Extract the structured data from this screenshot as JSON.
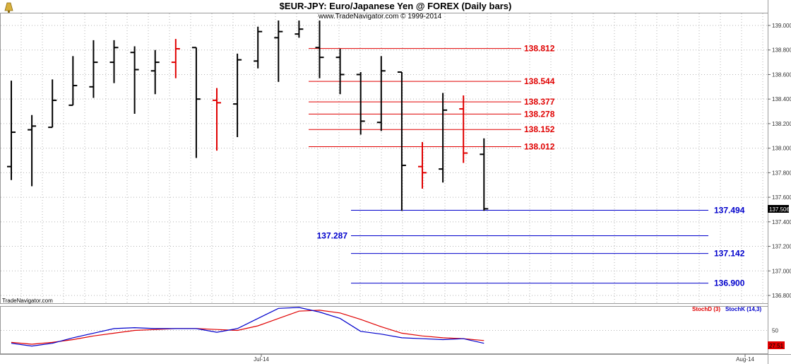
{
  "header": {
    "title": "$EUR-JPY:  Euro/Japanese Yen @ FOREX  (Daily bars)",
    "subtitle": "www.TradeNavigator.com © 1999-2014",
    "watermark": "TradeNavigator.com",
    "logo_icon": "bell-logo-icon"
  },
  "colors": {
    "up_bar": "#000000",
    "down_bar": "#e00000",
    "resistance": "#e00000",
    "support": "#0000cc",
    "stochD": "#e00000",
    "stochK": "#0000cc",
    "price_box": "#000000",
    "stoch_box": "#e00000"
  },
  "chart_data": [
    {
      "type": "bar",
      "subtype": "ohlc",
      "ylim": [
        136.7,
        139.05
      ],
      "y_ticks": [
        "139.000",
        "138.800",
        "138.600",
        "138.400",
        "138.200",
        "138.000",
        "137.800",
        "137.600",
        "137.400",
        "137.200",
        "137.000",
        "136.800"
      ],
      "x_ticks": [
        "Jul-14",
        "Aug-14"
      ],
      "last_price_label": "137.506",
      "bars": [
        {
          "o": 137.85,
          "h": 138.55,
          "l": 137.74,
          "c": 138.13,
          "color": "up"
        },
        {
          "o": 138.15,
          "h": 138.27,
          "l": 137.69,
          "c": 138.18,
          "color": "up"
        },
        {
          "o": 138.17,
          "h": 138.56,
          "l": 138.17,
          "c": 138.39,
          "color": "up"
        },
        {
          "o": 138.35,
          "h": 138.75,
          "l": 138.35,
          "c": 138.51,
          "color": "up"
        },
        {
          "o": 138.5,
          "h": 138.88,
          "l": 138.41,
          "c": 138.7,
          "color": "up"
        },
        {
          "o": 138.7,
          "h": 138.88,
          "l": 138.53,
          "c": 138.82,
          "color": "up"
        },
        {
          "o": 138.78,
          "h": 138.83,
          "l": 138.28,
          "c": 138.64,
          "color": "up"
        },
        {
          "o": 138.63,
          "h": 138.8,
          "l": 138.44,
          "c": 138.7,
          "color": "up"
        },
        {
          "o": 138.7,
          "h": 138.89,
          "l": 138.57,
          "c": 138.81,
          "color": "down"
        },
        {
          "o": 138.82,
          "h": 138.82,
          "l": 137.92,
          "c": 138.4,
          "color": "up"
        },
        {
          "o": 138.39,
          "h": 138.49,
          "l": 137.98,
          "c": 138.37,
          "color": "down"
        },
        {
          "o": 138.36,
          "h": 138.77,
          "l": 138.09,
          "c": 138.72,
          "color": "up"
        },
        {
          "o": 138.71,
          "h": 138.99,
          "l": 138.65,
          "c": 138.95,
          "color": "up"
        },
        {
          "o": 138.9,
          "h": 139.04,
          "l": 138.54,
          "c": 138.95,
          "color": "up"
        },
        {
          "o": 138.93,
          "h": 139.04,
          "l": 138.9,
          "c": 138.97,
          "color": "up"
        },
        {
          "o": 138.82,
          "h": 139.04,
          "l": 138.57,
          "c": 138.74,
          "color": "up"
        },
        {
          "o": 138.74,
          "h": 138.81,
          "l": 138.44,
          "c": 138.6,
          "color": "up"
        },
        {
          "o": 138.6,
          "h": 138.62,
          "l": 138.11,
          "c": 138.22,
          "color": "up"
        },
        {
          "o": 138.21,
          "h": 138.75,
          "l": 138.14,
          "c": 138.63,
          "color": "up"
        },
        {
          "o": 138.62,
          "h": 138.62,
          "l": 137.49,
          "c": 137.86,
          "color": "up"
        },
        {
          "o": 137.85,
          "h": 138.05,
          "l": 137.67,
          "c": 137.8,
          "color": "down"
        },
        {
          "o": 137.83,
          "h": 138.45,
          "l": 137.72,
          "c": 138.31,
          "color": "up"
        },
        {
          "o": 138.32,
          "h": 138.43,
          "l": 137.88,
          "c": 137.96,
          "color": "down"
        },
        {
          "o": 137.95,
          "h": 138.08,
          "l": 137.49,
          "c": 137.506,
          "color": "up"
        }
      ],
      "levels": [
        {
          "value": 138.812,
          "label": "138.812",
          "kind": "resistance"
        },
        {
          "value": 138.544,
          "label": "138.544",
          "kind": "resistance"
        },
        {
          "value": 138.377,
          "label": "138.377",
          "kind": "resistance"
        },
        {
          "value": 138.278,
          "label": "138.278",
          "kind": "resistance"
        },
        {
          "value": 138.152,
          "label": "138.152",
          "kind": "resistance"
        },
        {
          "value": 138.012,
          "label": "138.012",
          "kind": "resistance"
        },
        {
          "value": 137.494,
          "label": "137.494",
          "kind": "support"
        },
        {
          "value": 137.287,
          "label": "137.287",
          "kind": "support"
        },
        {
          "value": 137.142,
          "label": "137.142",
          "kind": "support"
        },
        {
          "value": 136.9,
          "label": "136.900",
          "kind": "support"
        }
      ]
    },
    {
      "type": "line",
      "legend": [
        {
          "name": "StochD (3)",
          "color": "#e00000"
        },
        {
          "name": "StochK (14,3)",
          "color": "#0000cc"
        }
      ],
      "ylim": [
        0,
        100
      ],
      "y_ticks": [
        "50"
      ],
      "last_value_label": "27.51",
      "series": [
        {
          "name": "StochD (3)",
          "values": [
            24,
            20,
            24,
            30,
            38,
            44,
            50,
            52,
            54,
            54,
            52,
            50,
            60,
            76,
            92,
            94,
            88,
            74,
            58,
            44,
            38,
            34,
            32,
            28
          ]
        },
        {
          "name": "StochK (14,3)",
          "values": [
            22,
            16,
            22,
            34,
            44,
            54,
            56,
            54,
            54,
            54,
            46,
            54,
            76,
            98,
            100,
            90,
            76,
            48,
            42,
            34,
            32,
            30,
            32,
            22
          ]
        }
      ]
    }
  ]
}
